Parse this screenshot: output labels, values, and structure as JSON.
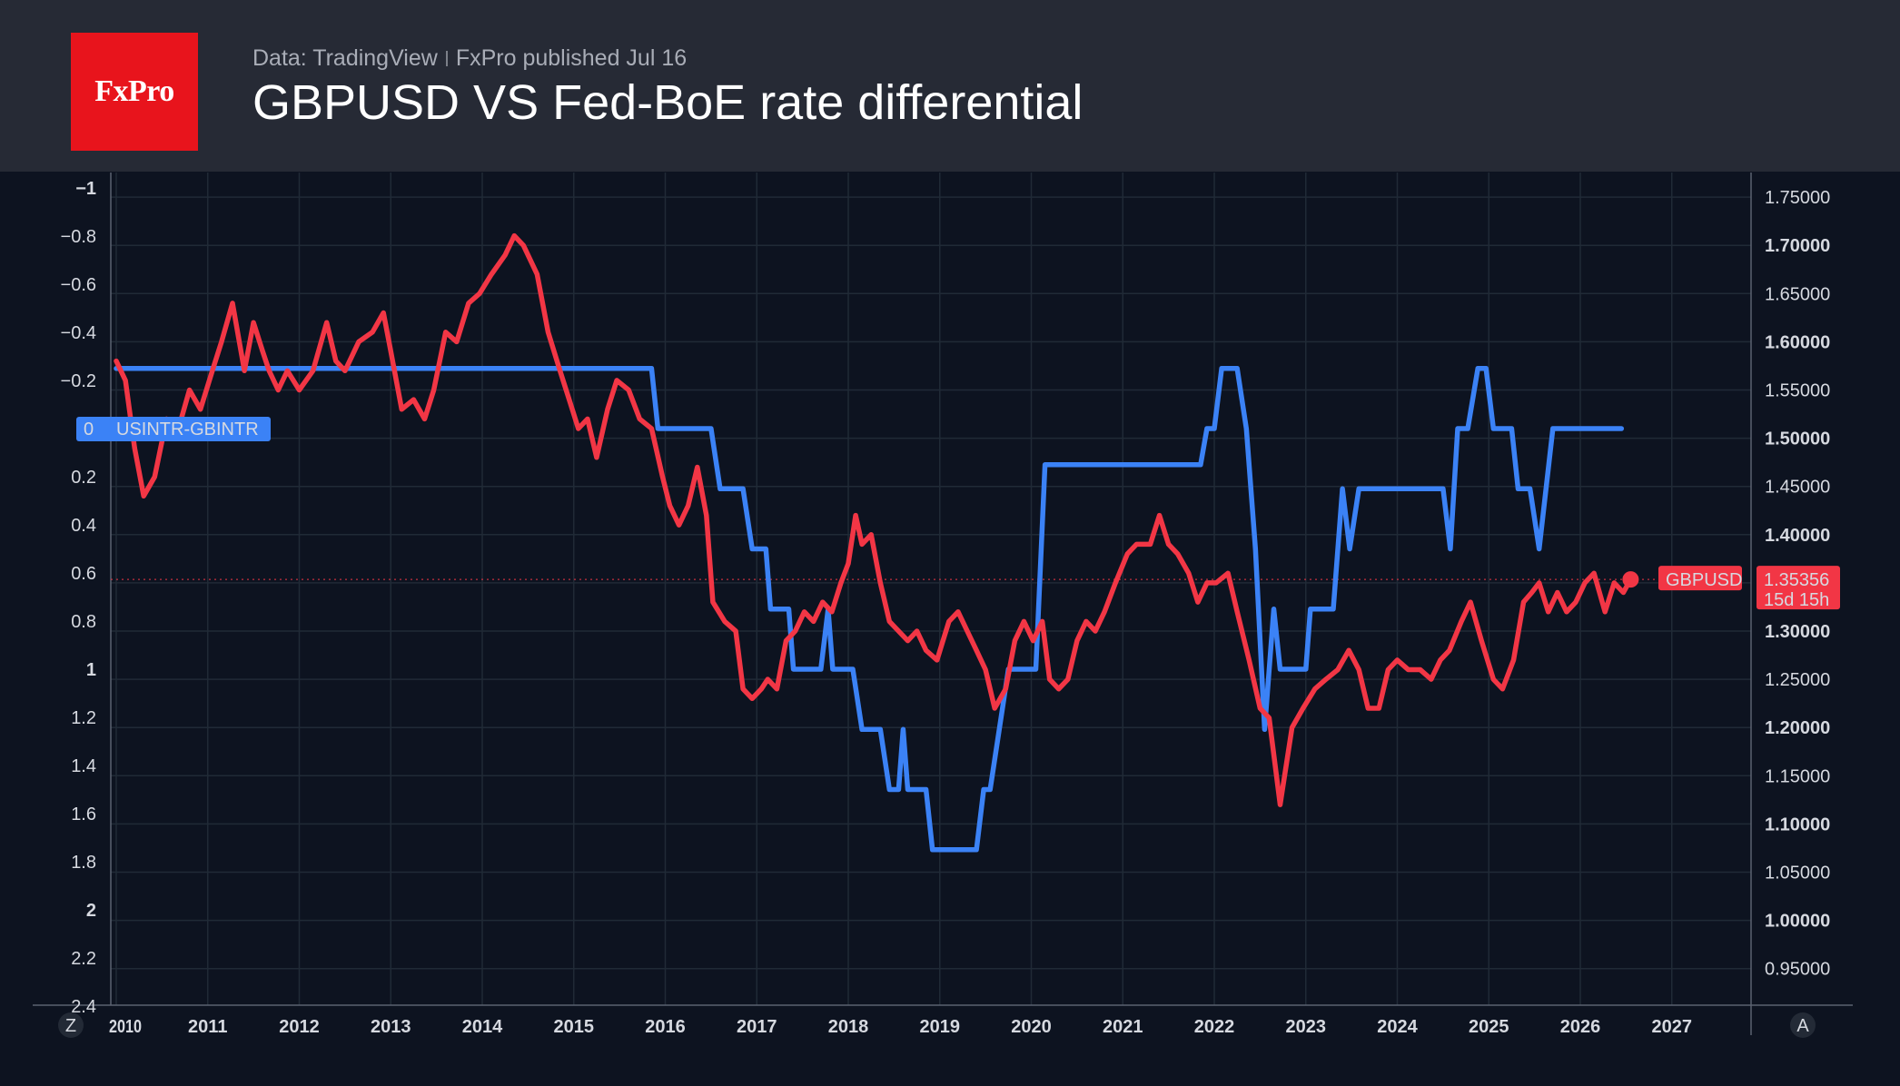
{
  "header": {
    "logo_text": "FxPro",
    "source": "Data: TradingView",
    "published": "FxPro published Jul 16",
    "title": "GBPUSD VS Fed-BoE rate differential"
  },
  "colors": {
    "background": "#0d1320",
    "header_bg": "#262a35",
    "logo_bg": "#e8141c",
    "blue_series": "#3b82f6",
    "red_series": "#f23645",
    "grid": "#202a36"
  },
  "corner_buttons": {
    "left": "Z",
    "right": "A"
  },
  "chart_data": {
    "type": "line",
    "x_ticks": [
      "2010",
      "2011",
      "2012",
      "2013",
      "2014",
      "2015",
      "2016",
      "2017",
      "2018",
      "2019",
      "2020",
      "2021",
      "2022",
      "2023",
      "2024",
      "2025",
      "2026",
      "2027"
    ],
    "xlim": [
      2010.0,
      2028.0
    ],
    "left_axis": {
      "ticks": [
        "−1",
        "−0.8",
        "−0.6",
        "−0.4",
        "−0.2",
        "0.2",
        "0.4",
        "0.6",
        "0.8",
        "1",
        "1.2",
        "1.4",
        "1.6",
        "1.8",
        "2",
        "2.2",
        "2.4"
      ],
      "bold_ticks": [
        "−1",
        "1",
        "2"
      ],
      "range": [
        -1.0,
        2.4
      ],
      "inverted": true
    },
    "right_axis": {
      "ticks": [
        "1.75000",
        "1.70000",
        "1.65000",
        "1.60000",
        "1.55000",
        "1.50000",
        "1.45000",
        "1.40000",
        "1.35000",
        "1.30000",
        "1.25000",
        "1.20000",
        "1.15000",
        "1.10000",
        "1.05000",
        "1.00000",
        "0.95000"
      ],
      "bold_ticks": [
        "1.70000",
        "1.60000",
        "1.50000",
        "1.40000",
        "1.30000",
        "1.20000",
        "1.10000",
        "1.00000"
      ],
      "range": [
        0.913,
        1.784
      ]
    },
    "series": [
      {
        "name": "USINTR-GBINTR",
        "axis": "left",
        "color": "#3b82f6",
        "label_value": "0",
        "points": [
          [
            2010.0,
            -0.25
          ],
          [
            2015.85,
            -0.25
          ],
          [
            2015.92,
            0.0
          ],
          [
            2016.5,
            0.0
          ],
          [
            2016.6,
            0.25
          ],
          [
            2016.85,
            0.25
          ],
          [
            2016.95,
            0.5
          ],
          [
            2017.1,
            0.5
          ],
          [
            2017.15,
            0.75
          ],
          [
            2017.35,
            0.75
          ],
          [
            2017.4,
            1.0
          ],
          [
            2017.7,
            1.0
          ],
          [
            2017.78,
            0.75
          ],
          [
            2017.83,
            1.0
          ],
          [
            2018.05,
            1.0
          ],
          [
            2018.15,
            1.25
          ],
          [
            2018.35,
            1.25
          ],
          [
            2018.45,
            1.5
          ],
          [
            2018.55,
            1.5
          ],
          [
            2018.6,
            1.25
          ],
          [
            2018.65,
            1.5
          ],
          [
            2018.85,
            1.5
          ],
          [
            2018.92,
            1.75
          ],
          [
            2019.4,
            1.75
          ],
          [
            2019.48,
            1.5
          ],
          [
            2019.55,
            1.5
          ],
          [
            2019.75,
            1.0
          ],
          [
            2020.05,
            1.0
          ],
          [
            2020.15,
            0.15
          ],
          [
            2021.85,
            0.15
          ],
          [
            2021.92,
            0.0
          ],
          [
            2022.0,
            0.0
          ],
          [
            2022.08,
            -0.25
          ],
          [
            2022.25,
            -0.25
          ],
          [
            2022.35,
            0.0
          ],
          [
            2022.45,
            0.5
          ],
          [
            2022.55,
            1.25
          ],
          [
            2022.65,
            0.75
          ],
          [
            2022.72,
            1.0
          ],
          [
            2023.0,
            1.0
          ],
          [
            2023.05,
            0.75
          ],
          [
            2023.3,
            0.75
          ],
          [
            2023.4,
            0.25
          ],
          [
            2023.48,
            0.5
          ],
          [
            2023.58,
            0.25
          ],
          [
            2024.5,
            0.25
          ],
          [
            2024.58,
            0.5
          ],
          [
            2024.66,
            0.0
          ],
          [
            2024.77,
            0.0
          ],
          [
            2024.88,
            -0.25
          ],
          [
            2024.97,
            -0.25
          ],
          [
            2025.05,
            0.0
          ],
          [
            2025.25,
            0.0
          ],
          [
            2025.32,
            0.25
          ],
          [
            2025.45,
            0.25
          ],
          [
            2025.55,
            0.5
          ],
          [
            2025.7,
            0.0
          ],
          [
            2026.45,
            0.0
          ]
        ]
      },
      {
        "name": "GBPUSD",
        "axis": "right",
        "color": "#f23645",
        "last_value": "1.35356",
        "countdown": "15d 15h",
        "points": [
          [
            2010.0,
            1.58
          ],
          [
            2010.1,
            1.56
          ],
          [
            2010.2,
            1.49
          ],
          [
            2010.3,
            1.44
          ],
          [
            2010.42,
            1.46
          ],
          [
            2010.55,
            1.52
          ],
          [
            2010.65,
            1.5
          ],
          [
            2010.8,
            1.55
          ],
          [
            2010.92,
            1.53
          ],
          [
            2011.05,
            1.57
          ],
          [
            2011.15,
            1.6
          ],
          [
            2011.27,
            1.64
          ],
          [
            2011.4,
            1.57
          ],
          [
            2011.5,
            1.62
          ],
          [
            2011.6,
            1.59
          ],
          [
            2011.67,
            1.57
          ],
          [
            2011.77,
            1.55
          ],
          [
            2011.87,
            1.57
          ],
          [
            2012.0,
            1.55
          ],
          [
            2012.15,
            1.57
          ],
          [
            2012.3,
            1.62
          ],
          [
            2012.4,
            1.58
          ],
          [
            2012.5,
            1.57
          ],
          [
            2012.65,
            1.6
          ],
          [
            2012.8,
            1.61
          ],
          [
            2012.92,
            1.63
          ],
          [
            2013.0,
            1.59
          ],
          [
            2013.12,
            1.53
          ],
          [
            2013.25,
            1.54
          ],
          [
            2013.37,
            1.52
          ],
          [
            2013.47,
            1.55
          ],
          [
            2013.6,
            1.61
          ],
          [
            2013.72,
            1.6
          ],
          [
            2013.85,
            1.64
          ],
          [
            2013.97,
            1.65
          ],
          [
            2014.1,
            1.67
          ],
          [
            2014.25,
            1.69
          ],
          [
            2014.35,
            1.71
          ],
          [
            2014.45,
            1.7
          ],
          [
            2014.6,
            1.67
          ],
          [
            2014.72,
            1.61
          ],
          [
            2014.85,
            1.57
          ],
          [
            2014.95,
            1.54
          ],
          [
            2015.05,
            1.51
          ],
          [
            2015.15,
            1.52
          ],
          [
            2015.25,
            1.48
          ],
          [
            2015.37,
            1.53
          ],
          [
            2015.47,
            1.56
          ],
          [
            2015.6,
            1.55
          ],
          [
            2015.72,
            1.52
          ],
          [
            2015.85,
            1.51
          ],
          [
            2015.97,
            1.46
          ],
          [
            2016.05,
            1.43
          ],
          [
            2016.15,
            1.41
          ],
          [
            2016.25,
            1.43
          ],
          [
            2016.35,
            1.47
          ],
          [
            2016.45,
            1.42
          ],
          [
            2016.52,
            1.33
          ],
          [
            2016.65,
            1.31
          ],
          [
            2016.77,
            1.3
          ],
          [
            2016.85,
            1.24
          ],
          [
            2016.95,
            1.23
          ],
          [
            2017.05,
            1.24
          ],
          [
            2017.12,
            1.25
          ],
          [
            2017.22,
            1.24
          ],
          [
            2017.32,
            1.29
          ],
          [
            2017.42,
            1.3
          ],
          [
            2017.52,
            1.32
          ],
          [
            2017.62,
            1.31
          ],
          [
            2017.72,
            1.33
          ],
          [
            2017.82,
            1.32
          ],
          [
            2017.92,
            1.35
          ],
          [
            2018.0,
            1.37
          ],
          [
            2018.08,
            1.42
          ],
          [
            2018.15,
            1.39
          ],
          [
            2018.25,
            1.4
          ],
          [
            2018.35,
            1.35
          ],
          [
            2018.45,
            1.31
          ],
          [
            2018.55,
            1.3
          ],
          [
            2018.65,
            1.29
          ],
          [
            2018.75,
            1.3
          ],
          [
            2018.85,
            1.28
          ],
          [
            2018.97,
            1.27
          ],
          [
            2019.1,
            1.31
          ],
          [
            2019.2,
            1.32
          ],
          [
            2019.3,
            1.3
          ],
          [
            2019.4,
            1.28
          ],
          [
            2019.5,
            1.26
          ],
          [
            2019.6,
            1.22
          ],
          [
            2019.72,
            1.24
          ],
          [
            2019.82,
            1.29
          ],
          [
            2019.92,
            1.31
          ],
          [
            2020.02,
            1.29
          ],
          [
            2020.12,
            1.31
          ],
          [
            2020.2,
            1.25
          ],
          [
            2020.3,
            1.24
          ],
          [
            2020.4,
            1.25
          ],
          [
            2020.5,
            1.29
          ],
          [
            2020.6,
            1.31
          ],
          [
            2020.7,
            1.3
          ],
          [
            2020.8,
            1.32
          ],
          [
            2020.92,
            1.35
          ],
          [
            2021.05,
            1.38
          ],
          [
            2021.15,
            1.39
          ],
          [
            2021.3,
            1.39
          ],
          [
            2021.4,
            1.42
          ],
          [
            2021.5,
            1.39
          ],
          [
            2021.6,
            1.38
          ],
          [
            2021.72,
            1.36
          ],
          [
            2021.82,
            1.33
          ],
          [
            2021.92,
            1.35
          ],
          [
            2022.02,
            1.35
          ],
          [
            2022.15,
            1.36
          ],
          [
            2022.25,
            1.32
          ],
          [
            2022.38,
            1.27
          ],
          [
            2022.5,
            1.22
          ],
          [
            2022.6,
            1.21
          ],
          [
            2022.72,
            1.12
          ],
          [
            2022.85,
            1.2
          ],
          [
            2022.97,
            1.22
          ],
          [
            2023.1,
            1.24
          ],
          [
            2023.22,
            1.25
          ],
          [
            2023.35,
            1.26
          ],
          [
            2023.47,
            1.28
          ],
          [
            2023.58,
            1.26
          ],
          [
            2023.68,
            1.22
          ],
          [
            2023.8,
            1.22
          ],
          [
            2023.9,
            1.26
          ],
          [
            2024.0,
            1.27
          ],
          [
            2024.12,
            1.26
          ],
          [
            2024.25,
            1.26
          ],
          [
            2024.37,
            1.25
          ],
          [
            2024.47,
            1.27
          ],
          [
            2024.57,
            1.28
          ],
          [
            2024.7,
            1.31
          ],
          [
            2024.8,
            1.33
          ],
          [
            2024.92,
            1.29
          ],
          [
            2025.05,
            1.25
          ],
          [
            2025.15,
            1.24
          ],
          [
            2025.27,
            1.27
          ],
          [
            2025.38,
            1.33
          ],
          [
            2025.47,
            1.34
          ],
          [
            2025.55,
            1.35
          ],
          [
            2025.65,
            1.32
          ],
          [
            2025.75,
            1.34
          ],
          [
            2025.85,
            1.32
          ],
          [
            2025.95,
            1.33
          ],
          [
            2026.05,
            1.35
          ],
          [
            2026.15,
            1.36
          ],
          [
            2026.27,
            1.32
          ],
          [
            2026.37,
            1.35
          ],
          [
            2026.47,
            1.34
          ],
          [
            2026.55,
            1.35356
          ]
        ]
      }
    ]
  }
}
